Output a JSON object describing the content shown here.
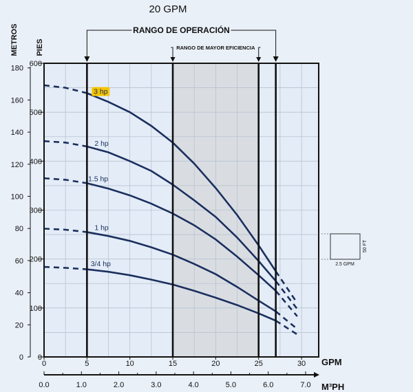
{
  "chart_data": {
    "type": "line",
    "title": "20 GPM",
    "operating_range_label": "RANGO DE OPERACIÓN",
    "efficiency_range_label": "RANGO DE MAYOR EFICIENCIA",
    "left_axis_label": "METROS",
    "left_axis_ticks": [
      0,
      20,
      40,
      60,
      80,
      100,
      120,
      140,
      160,
      180
    ],
    "right_axis_label": "PIES",
    "right_axis_ticks": [
      0,
      100,
      200,
      300,
      400,
      500,
      600
    ],
    "ylim_ft": [
      0,
      600
    ],
    "xlabel": "GPM",
    "x_ticks": [
      0,
      5,
      10,
      15,
      20,
      25,
      30
    ],
    "xlim_gpm": [
      0,
      32
    ],
    "x2label": "M³PH",
    "x2_ticks": [
      "0.0",
      "1.0",
      "2.0",
      "3.0",
      "4.0",
      "5.0",
      "6.0",
      "7.0"
    ],
    "operating_range_gpm": [
      5,
      27
    ],
    "efficiency_range_gpm": [
      15,
      25
    ],
    "grid": true,
    "scale_box": {
      "width_label": "2.5 GPM",
      "height_label": "50 FT"
    },
    "colors": {
      "curve": "#1b2f5e",
      "highlight": "#f5c400",
      "shade": "#d9dde2",
      "plot_bg": "#e3ecf7",
      "grid": "#b9c3cf"
    },
    "series": [
      {
        "name": "3 hp",
        "highlight": true,
        "x": [
          0,
          2.5,
          5,
          7.5,
          10,
          12.5,
          15,
          17.5,
          20,
          22.5,
          25,
          27,
          29.5
        ],
        "y": [
          555,
          550,
          539,
          521,
          500,
          472,
          438,
          395,
          345,
          290,
          228,
          175,
          110
        ],
        "label_x": 6.6
      },
      {
        "name": "2 hp",
        "x": [
          0,
          2.5,
          5,
          7.5,
          10,
          12.5,
          15,
          17.5,
          20,
          22.5,
          25,
          27,
          29.5
        ],
        "y": [
          441,
          438,
          430,
          418,
          400,
          380,
          352,
          320,
          286,
          244,
          196,
          155,
          98
        ],
        "label_x": 6.7
      },
      {
        "name": "1.5 hp",
        "x": [
          0,
          2.5,
          5,
          7.5,
          10,
          12.5,
          15,
          17.5,
          20,
          22.5,
          25,
          27,
          29.5
        ],
        "y": [
          365,
          362,
          355,
          344,
          330,
          313,
          293,
          269,
          240,
          205,
          167,
          135,
          83
        ],
        "label_x": 6.3
      },
      {
        "name": "1 hp",
        "x": [
          0,
          2.5,
          5,
          7.5,
          10,
          12.5,
          15,
          17.5,
          20,
          22.5,
          25,
          27,
          29.5
        ],
        "y": [
          262,
          260,
          255,
          247,
          237,
          224,
          209,
          190,
          169,
          143,
          115,
          93,
          57
        ],
        "label_x": 6.7
      },
      {
        "name": "3/4 hp",
        "x": [
          0,
          2.5,
          5,
          7.5,
          10,
          12.5,
          15,
          17.5,
          20,
          22.5,
          25,
          27,
          29.5
        ],
        "y": [
          184,
          182,
          179,
          174,
          167,
          158,
          148,
          135,
          121,
          106,
          89,
          74,
          46
        ],
        "label_x": 6.6
      }
    ]
  }
}
